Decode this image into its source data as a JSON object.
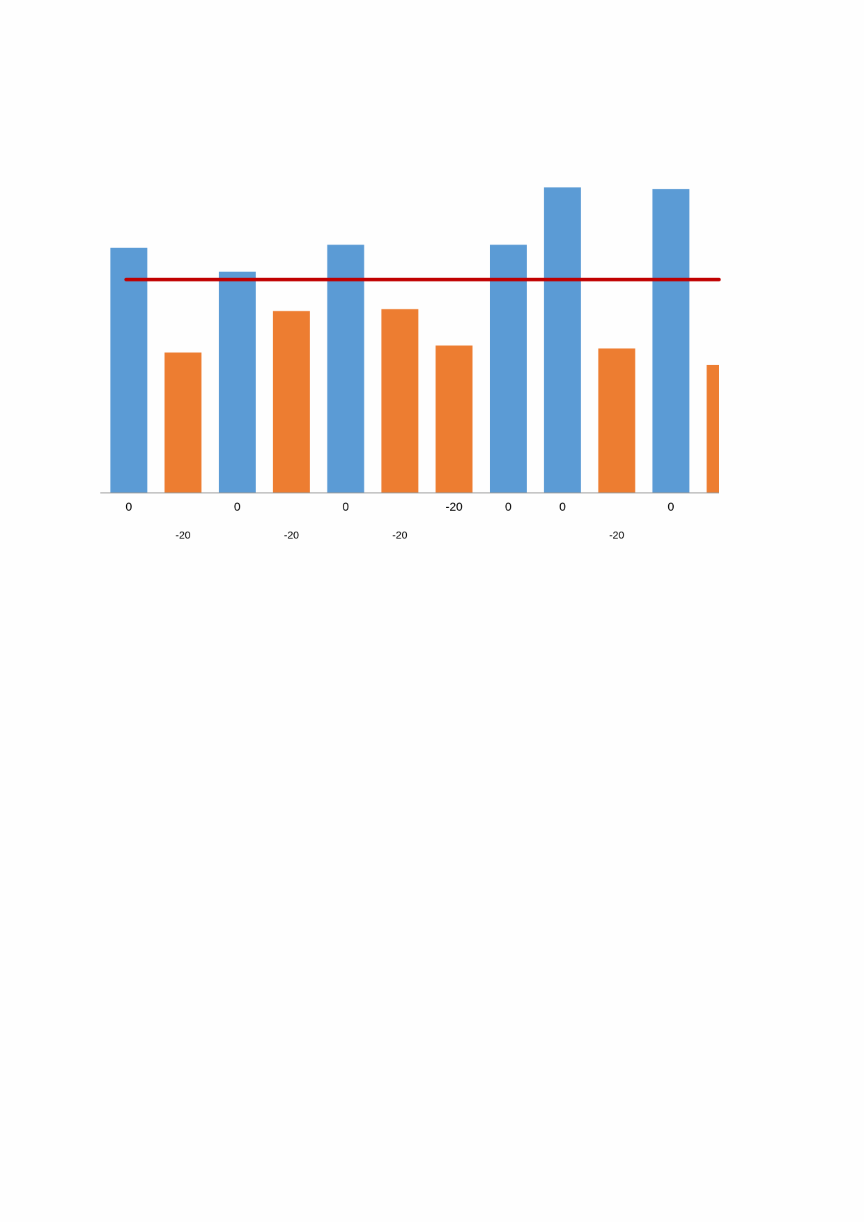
{
  "chart_data": {
    "type": "bar",
    "categories": [
      "0",
      "-20",
      "0",
      "-20",
      "0",
      "-20",
      "-20",
      "0",
      "0",
      "-20",
      "0",
      "-"
    ],
    "series": [
      {
        "color": "#5B9BD5",
        "values": [
          80.2,
          null,
          72.4,
          null,
          81.2,
          null,
          null,
          81.2,
          100,
          null,
          99.5,
          null
        ]
      },
      {
        "color": "#ED7D31",
        "values": [
          null,
          45.9,
          null,
          59.5,
          null,
          60.1,
          48.2,
          null,
          null,
          47.2,
          null,
          41.8
        ]
      }
    ],
    "reference_line": {
      "type": "horizontal",
      "value": 69.8,
      "color": "#C00000"
    },
    "ylim": [
      0,
      100
    ],
    "title": "",
    "xlabel": "",
    "ylabel": "",
    "grid": false,
    "legend": "none",
    "axis_color": "#999999"
  }
}
